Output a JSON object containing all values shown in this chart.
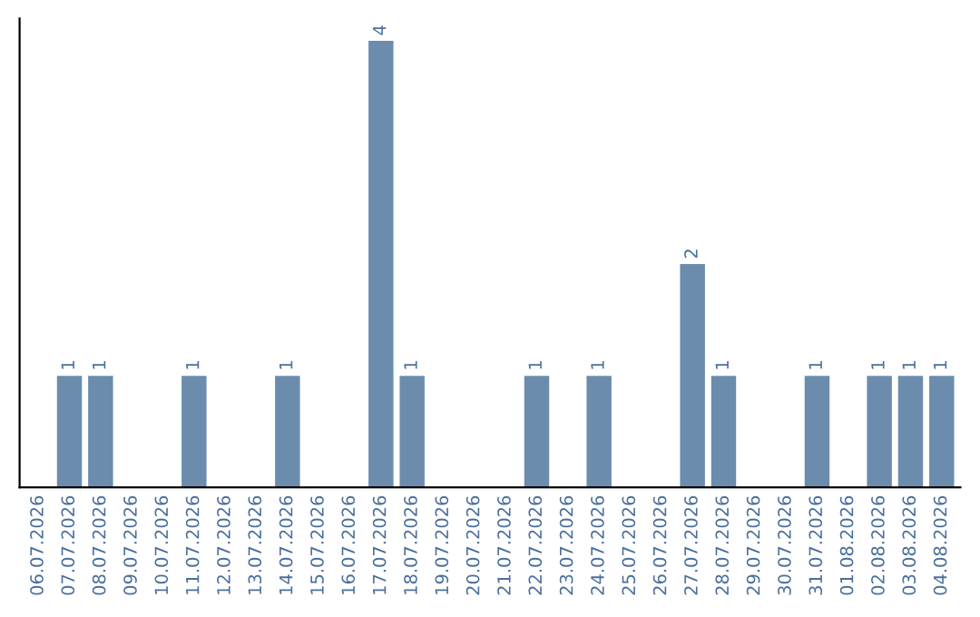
{
  "chart_data": {
    "type": "bar",
    "categories": [
      "06.07.2026",
      "07.07.2026",
      "08.07.2026",
      "09.07.2026",
      "10.07.2026",
      "11.07.2026",
      "12.07.2026",
      "13.07.2026",
      "14.07.2026",
      "15.07.2026",
      "16.07.2026",
      "17.07.2026",
      "18.07.2026",
      "19.07.2026",
      "20.07.2026",
      "21.07.2026",
      "22.07.2026",
      "23.07.2026",
      "24.07.2026",
      "25.07.2026",
      "26.07.2026",
      "27.07.2026",
      "28.07.2026",
      "29.07.2026",
      "30.07.2026",
      "31.07.2026",
      "01.08.2026",
      "02.08.2026",
      "03.08.2026",
      "04.08.2026"
    ],
    "values": [
      0,
      1,
      1,
      0,
      0,
      1,
      0,
      0,
      1,
      0,
      0,
      4,
      1,
      0,
      0,
      0,
      1,
      0,
      1,
      0,
      0,
      2,
      1,
      0,
      0,
      1,
      0,
      1,
      1,
      1
    ],
    "value_labels": [
      null,
      "1",
      "1",
      null,
      null,
      "1",
      null,
      null,
      "1",
      null,
      null,
      "4",
      "1",
      null,
      null,
      null,
      "1",
      null,
      "1",
      null,
      null,
      "2",
      "1",
      null,
      null,
      "1",
      null,
      "1",
      "1",
      "1"
    ],
    "color": "#6b8cad",
    "tick_labels": "x",
    "grid": false
  }
}
